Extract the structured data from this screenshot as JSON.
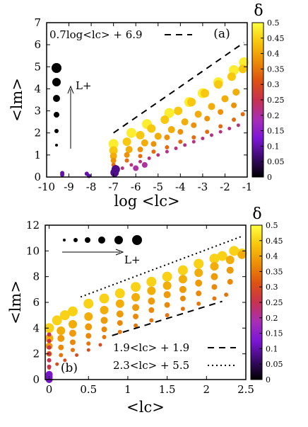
{
  "figure": {
    "colorbar_label": "δ",
    "colorbar_ticks": [
      "0",
      "0.05",
      "0.1",
      "0.15",
      "0.2",
      "0.25",
      "0.3",
      "0.35",
      "0.4",
      "0.45",
      "0.5"
    ],
    "colorbar_range": [
      0,
      0.5
    ],
    "colormap_stops": [
      "#000000",
      "#3b0a6b",
      "#7c16d6",
      "#a82fb5",
      "#c6324f",
      "#dd5212",
      "#ec8e06",
      "#f7c60c",
      "#ffff40"
    ]
  },
  "chart_data": [
    {
      "type": "scatter",
      "panel_label": "(a)",
      "xlabel": "log <lc>",
      "ylabel": "<lm>",
      "xlim": [
        -10,
        -1
      ],
      "ylim": [
        0,
        7
      ],
      "xticks": [
        "-10",
        "-9",
        "-8",
        "-7",
        "-6",
        "-5",
        "-4",
        "-3",
        "-2",
        "-1"
      ],
      "yticks": [
        "0",
        "1",
        "2",
        "3",
        "4",
        "5",
        "6",
        "7"
      ],
      "size_legend_label": "L+",
      "size_legend_orientation": "vertical",
      "reference_line": {
        "label": "0.7log<lc> + 6.9",
        "style": "dashed",
        "slope": 0.7,
        "intercept": 6.9,
        "x_range": [
          -7,
          -1.15
        ]
      },
      "series": [
        {
          "delta": 0.48,
          "size": 7,
          "x": [
            -7.0,
            -6.2,
            -5.5,
            -4.5,
            -3.6,
            -3.0,
            -2.3,
            -1.6,
            -1.15
          ],
          "y": [
            1.5,
            2.0,
            2.4,
            2.9,
            3.4,
            3.8,
            4.3,
            4.85,
            5.2
          ]
        },
        {
          "delta": 0.44,
          "size": 6,
          "x": [
            -7.0,
            -6.4,
            -5.8,
            -5.3,
            -4.7,
            -4.1,
            -3.5,
            -2.9,
            -2.3,
            -1.7,
            -1.2
          ],
          "y": [
            1.2,
            1.6,
            1.9,
            2.2,
            2.6,
            3.0,
            3.4,
            3.8,
            4.2,
            4.55,
            4.9
          ]
        },
        {
          "delta": 0.41,
          "size": 5,
          "x": [
            -7.0,
            -6.3,
            -5.6,
            -5.0,
            -4.4,
            -3.8,
            -3.2,
            -2.6,
            -2.0,
            -1.5
          ],
          "y": [
            0.95,
            1.25,
            1.55,
            1.85,
            2.15,
            2.5,
            2.85,
            3.2,
            3.55,
            3.85
          ]
        },
        {
          "delta": 0.38,
          "size": 4,
          "x": [
            -7.0,
            -6.4,
            -5.8,
            -5.2,
            -4.6,
            -4.0,
            -3.4,
            -2.8,
            -2.2,
            -1.6
          ],
          "y": [
            0.75,
            1.0,
            1.25,
            1.5,
            1.8,
            2.05,
            2.35,
            2.65,
            2.95,
            3.25
          ]
        },
        {
          "delta": 0.34,
          "size": 3,
          "x": [
            -7.0,
            -6.4,
            -5.8,
            -5.2,
            -4.6,
            -4.0,
            -3.4,
            -2.8,
            -2.2,
            -1.6,
            -1.2
          ],
          "y": [
            0.55,
            0.75,
            0.95,
            1.15,
            1.35,
            1.6,
            1.8,
            2.05,
            2.3,
            2.6,
            2.85
          ]
        },
        {
          "delta": 0.22,
          "size": 2.5,
          "x": [
            -7.0,
            -6.6,
            -6.2,
            -5.8,
            -5.4,
            -5.0,
            -4.6,
            -4.2,
            -3.8,
            -3.4,
            -3.0,
            -2.6,
            -2.2,
            -1.8,
            -1.4
          ],
          "y": [
            0.25,
            0.4,
            0.55,
            0.7,
            0.85,
            1.0,
            1.15,
            1.3,
            1.45,
            1.6,
            1.75,
            1.9,
            2.05,
            2.2,
            2.35
          ]
        },
        {
          "delta": 0.2,
          "size": 4,
          "x": [
            -6.0,
            -5.6
          ],
          "y": [
            0.4,
            0.55
          ]
        },
        {
          "delta": 0.1,
          "size": 3,
          "x": [
            -9.3,
            -9.3,
            -8.2,
            -8.1,
            -7.0,
            -7.0,
            -6.9
          ],
          "y": [
            0.1,
            0.18,
            0.15,
            0.05,
            0.12,
            0.3,
            0.45
          ]
        },
        {
          "delta": 0.08,
          "size": 6,
          "x": [
            -6.95,
            -6.9
          ],
          "y": [
            0.2,
            0.35
          ]
        }
      ]
    },
    {
      "type": "scatter",
      "panel_label": "(b)",
      "xlabel": "<lc>",
      "ylabel": "<lm>",
      "xlim": [
        -0.05,
        2.5
      ],
      "ylim": [
        0,
        12
      ],
      "xticks": [
        "0",
        "0.5",
        "1",
        "1.5",
        "2",
        "2.5"
      ],
      "yticks": [
        "0",
        "2",
        "4",
        "6",
        "8",
        "10",
        "12"
      ],
      "size_legend_label": "L+",
      "size_legend_orientation": "horizontal",
      "reference_lines": [
        {
          "label": "1.9<lc> + 1.9",
          "style": "dashed",
          "slope": 1.9,
          "intercept": 1.9,
          "x_range": [
            0.8,
            2.2
          ]
        },
        {
          "label": "2.3<lc> + 5.5",
          "style": "dotted",
          "slope": 2.3,
          "intercept": 5.5,
          "x_range": [
            0.4,
            2.45
          ]
        }
      ],
      "series": [
        {
          "delta": 0.45,
          "size": 7,
          "x": [
            0.0,
            0.1,
            0.2,
            0.3,
            0.5,
            0.7,
            0.9,
            1.1,
            1.3,
            1.5,
            1.7,
            1.9,
            2.1,
            2.2,
            2.35,
            2.45
          ],
          "y": [
            4.0,
            4.6,
            5.0,
            5.3,
            5.9,
            6.3,
            6.7,
            7.2,
            7.6,
            8.0,
            8.5,
            9.0,
            9.4,
            9.6,
            10.0,
            9.8
          ]
        },
        {
          "delta": 0.41,
          "size": 6,
          "x": [
            0.0,
            0.15,
            0.3,
            0.5,
            0.7,
            0.9,
            1.1,
            1.3,
            1.5,
            1.7,
            1.9,
            2.1,
            2.3,
            2.45
          ],
          "y": [
            3.2,
            3.8,
            4.3,
            4.9,
            5.4,
            5.9,
            6.4,
            6.9,
            7.3,
            7.8,
            8.3,
            8.8,
            9.3,
            9.7
          ]
        },
        {
          "delta": 0.39,
          "size": 5,
          "x": [
            0.0,
            0.15,
            0.3,
            0.5,
            0.7,
            0.9,
            1.1,
            1.3,
            1.5,
            1.7,
            1.9,
            2.1,
            2.3
          ],
          "y": [
            2.6,
            3.2,
            3.6,
            4.1,
            4.6,
            5.1,
            5.6,
            6.1,
            6.6,
            7.0,
            7.5,
            8.0,
            8.5
          ]
        },
        {
          "delta": 0.37,
          "size": 4,
          "x": [
            0.0,
            0.15,
            0.3,
            0.5,
            0.7,
            0.9,
            1.1,
            1.3,
            1.5,
            1.7,
            1.9,
            2.1,
            2.3
          ],
          "y": [
            2.0,
            2.5,
            2.9,
            3.4,
            3.9,
            4.4,
            4.9,
            5.4,
            5.8,
            6.3,
            6.7,
            7.2,
            7.6
          ]
        },
        {
          "delta": 0.35,
          "size": 3,
          "x": [
            0.0,
            0.15,
            0.3,
            0.5,
            0.7,
            0.9,
            1.1,
            1.3,
            1.5,
            1.7,
            1.9,
            2.1,
            2.25
          ],
          "y": [
            1.5,
            1.9,
            2.3,
            2.8,
            3.3,
            3.7,
            4.2,
            4.6,
            5.0,
            5.5,
            5.9,
            6.3,
            6.6
          ]
        },
        {
          "delta": 0.3,
          "size": 2.5,
          "x": [
            0.0,
            0.1,
            0.2,
            0.35,
            0.5,
            0.65
          ],
          "y": [
            0.9,
            1.2,
            1.5,
            1.9,
            2.3,
            2.7
          ]
        },
        {
          "delta": 0.25,
          "size": 3,
          "x": [
            0.0,
            0.0,
            0.0,
            0.0,
            0.0,
            0.0
          ],
          "y": [
            1.0,
            1.5,
            2.0,
            2.5,
            3.0,
            3.5
          ]
        },
        {
          "delta": 0.12,
          "size": 5,
          "x": [
            0.0,
            0.0,
            0.0
          ],
          "y": [
            0.0,
            0.2,
            0.4
          ]
        }
      ]
    }
  ]
}
